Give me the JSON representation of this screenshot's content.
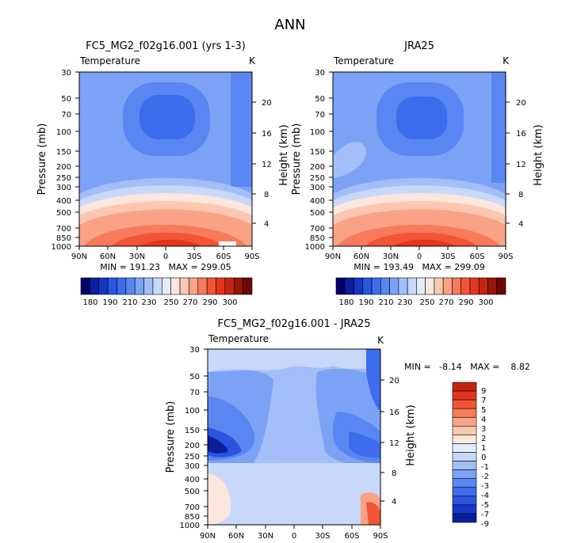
{
  "main_title": "ANN",
  "colors": {
    "abs_scale": [
      "#08006a",
      "#0a1e9c",
      "#1636c7",
      "#2b55de",
      "#3d6cec",
      "#5a86f1",
      "#7ca2f5",
      "#a3bef8",
      "#c8d8fb",
      "#e3ecfd",
      "#fde6dc",
      "#fcc7b0",
      "#f9a285",
      "#f77a5a",
      "#f25435",
      "#e4361c",
      "#c4240f",
      "#9a1408",
      "#6e0706"
    ],
    "diff_scale": [
      "#08006a",
      "#0a1e9c",
      "#1636c7",
      "#2b55de",
      "#3d6cec",
      "#5a86f1",
      "#7ca2f5",
      "#a3bef8",
      "#c8d8fb",
      "#e3ecfd",
      "#fde6dc",
      "#fcc7b0",
      "#f9a285",
      "#f77a5a",
      "#f25435",
      "#e4361c",
      "#c4240f",
      "#9a1408",
      "#6e0706"
    ]
  },
  "chart_data": [
    {
      "type": "heatmap",
      "title": "FC5_MG2_f02g16.001 (yrs 1-3)",
      "left_subtitle": "Temperature",
      "units": "K",
      "ylabel": "Pressure (mb)",
      "y2label": "Height (km)",
      "x_ticks": [
        "90N",
        "60N",
        "30N",
        "0",
        "30S",
        "60S",
        "90S"
      ],
      "y_ticks": [
        "30",
        "50",
        "70",
        "100",
        "150",
        "200",
        "250",
        "300",
        "400",
        "500",
        "700",
        "850",
        "1000"
      ],
      "height_ticks": [
        "20",
        "16",
        "12",
        "8",
        "4"
      ],
      "stats_text": "MIN = 191.23   MAX = 299.05",
      "min": 191.23,
      "max": 299.05,
      "colorbar_labels": [
        "180",
        "190",
        "210",
        "230",
        "250",
        "270",
        "290",
        "300"
      ]
    },
    {
      "type": "heatmap",
      "title": "JRA25",
      "left_subtitle": "Temperature",
      "units": "K",
      "ylabel": "Pressure (mb)",
      "y2label": "Height (km)",
      "x_ticks": [
        "90N",
        "60N",
        "30N",
        "0",
        "30S",
        "60S",
        "90S"
      ],
      "y_ticks": [
        "30",
        "50",
        "70",
        "100",
        "150",
        "200",
        "250",
        "300",
        "400",
        "500",
        "700",
        "850",
        "1000"
      ],
      "height_ticks": [
        "20",
        "16",
        "12",
        "8",
        "4"
      ],
      "stats_text": "MIN = 193.49   MAX = 299.09",
      "min": 193.49,
      "max": 299.09,
      "colorbar_labels": [
        "180",
        "190",
        "210",
        "230",
        "250",
        "270",
        "290",
        "300"
      ]
    },
    {
      "type": "heatmap",
      "title": "FC5_MG2_f02g16.001 - JRA25",
      "left_subtitle": "Temperature",
      "units": "K",
      "ylabel": "Pressure (mb)",
      "y2label": "Height (km)",
      "x_ticks": [
        "90N",
        "60N",
        "30N",
        "0",
        "30S",
        "60S",
        "90S"
      ],
      "y_ticks": [
        "30",
        "50",
        "70",
        "100",
        "150",
        "200",
        "250",
        "300",
        "400",
        "500",
        "700",
        "850",
        "1000"
      ],
      "height_ticks": [
        "20",
        "16",
        "12",
        "8",
        "4"
      ],
      "stats_text": "MIN =   -8.14   MAX =    8.82",
      "min": -8.14,
      "max": 8.82,
      "colorbar_labels": [
        "9",
        "7",
        "5",
        "4",
        "3",
        "2",
        "1",
        "0",
        "-1",
        "-2",
        "-3",
        "-4",
        "-5",
        "-7",
        "-9"
      ]
    }
  ]
}
